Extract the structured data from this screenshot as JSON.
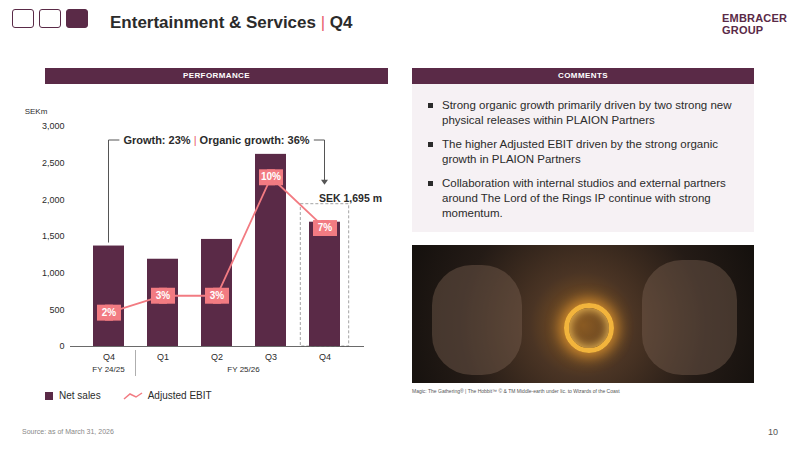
{
  "header": {
    "title": "Entertainment & Services | Q4",
    "logo": "EMBRACER GROUP"
  },
  "panels": {
    "performance": {
      "title": "PERFORMANCE"
    },
    "comments": {
      "title": "COMMENTS",
      "bullets": [
        "Strong organic growth primarily driven by two strong new physical releases within PLAION Partners",
        "The higher Adjusted EBIT driven by the strong organic growth in PLAION Partners",
        "Collaboration with internal studios and external partners around The Lord of the Rings IP continue with strong momentum."
      ],
      "image_caption": "Magic: The Gathering® | The Hobbit™ © & TM Middle-earth under lic. to Wizards of the Coast"
    }
  },
  "footer": {
    "source": "Source: as of March 31, 2026",
    "page": "10"
  },
  "chart_data": {
    "type": "bar",
    "categories": [
      "Q4",
      "Q1",
      "Q2",
      "Q3",
      "Q4"
    ],
    "groups": [
      "FY 24/25",
      "FY 25/26",
      "FY 25/26",
      "FY 25/26",
      "FY 25/26"
    ],
    "series": [
      {
        "name": "Net sales",
        "type": "bar",
        "color": "#5a2a47",
        "values": [
          1370,
          1190,
          1460,
          2620,
          1695
        ],
        "value_labels": [
          null,
          null,
          null,
          null,
          "SEK 1,695 m"
        ]
      },
      {
        "name": "Adjusted EBIT",
        "type": "line",
        "axis": "y2",
        "color": "#f27b82",
        "marker": "square",
        "values": [
          2,
          3,
          3,
          10,
          7
        ],
        "value_labels": [
          "2%",
          "3%",
          "3%",
          "10%",
          "7%"
        ]
      }
    ],
    "y_label": "SEKm",
    "ylim": [
      0,
      3000
    ],
    "yticks": [
      0,
      500,
      {
        "value": 1000,
        "label": "1,000"
      },
      {
        "value": 1500,
        "label": "1,500"
      },
      {
        "value": 2000,
        "label": "2,000"
      },
      {
        "value": 2500,
        "label": "2,500"
      },
      {
        "value": 3000,
        "label": "3,000"
      }
    ],
    "y2lim": [
      0,
      13
    ],
    "annotations": [
      {
        "text": "Growth: 23% | Organic growth: 36%"
      }
    ],
    "data_labels": true,
    "legend": "bottom-left",
    "grid": false
  }
}
